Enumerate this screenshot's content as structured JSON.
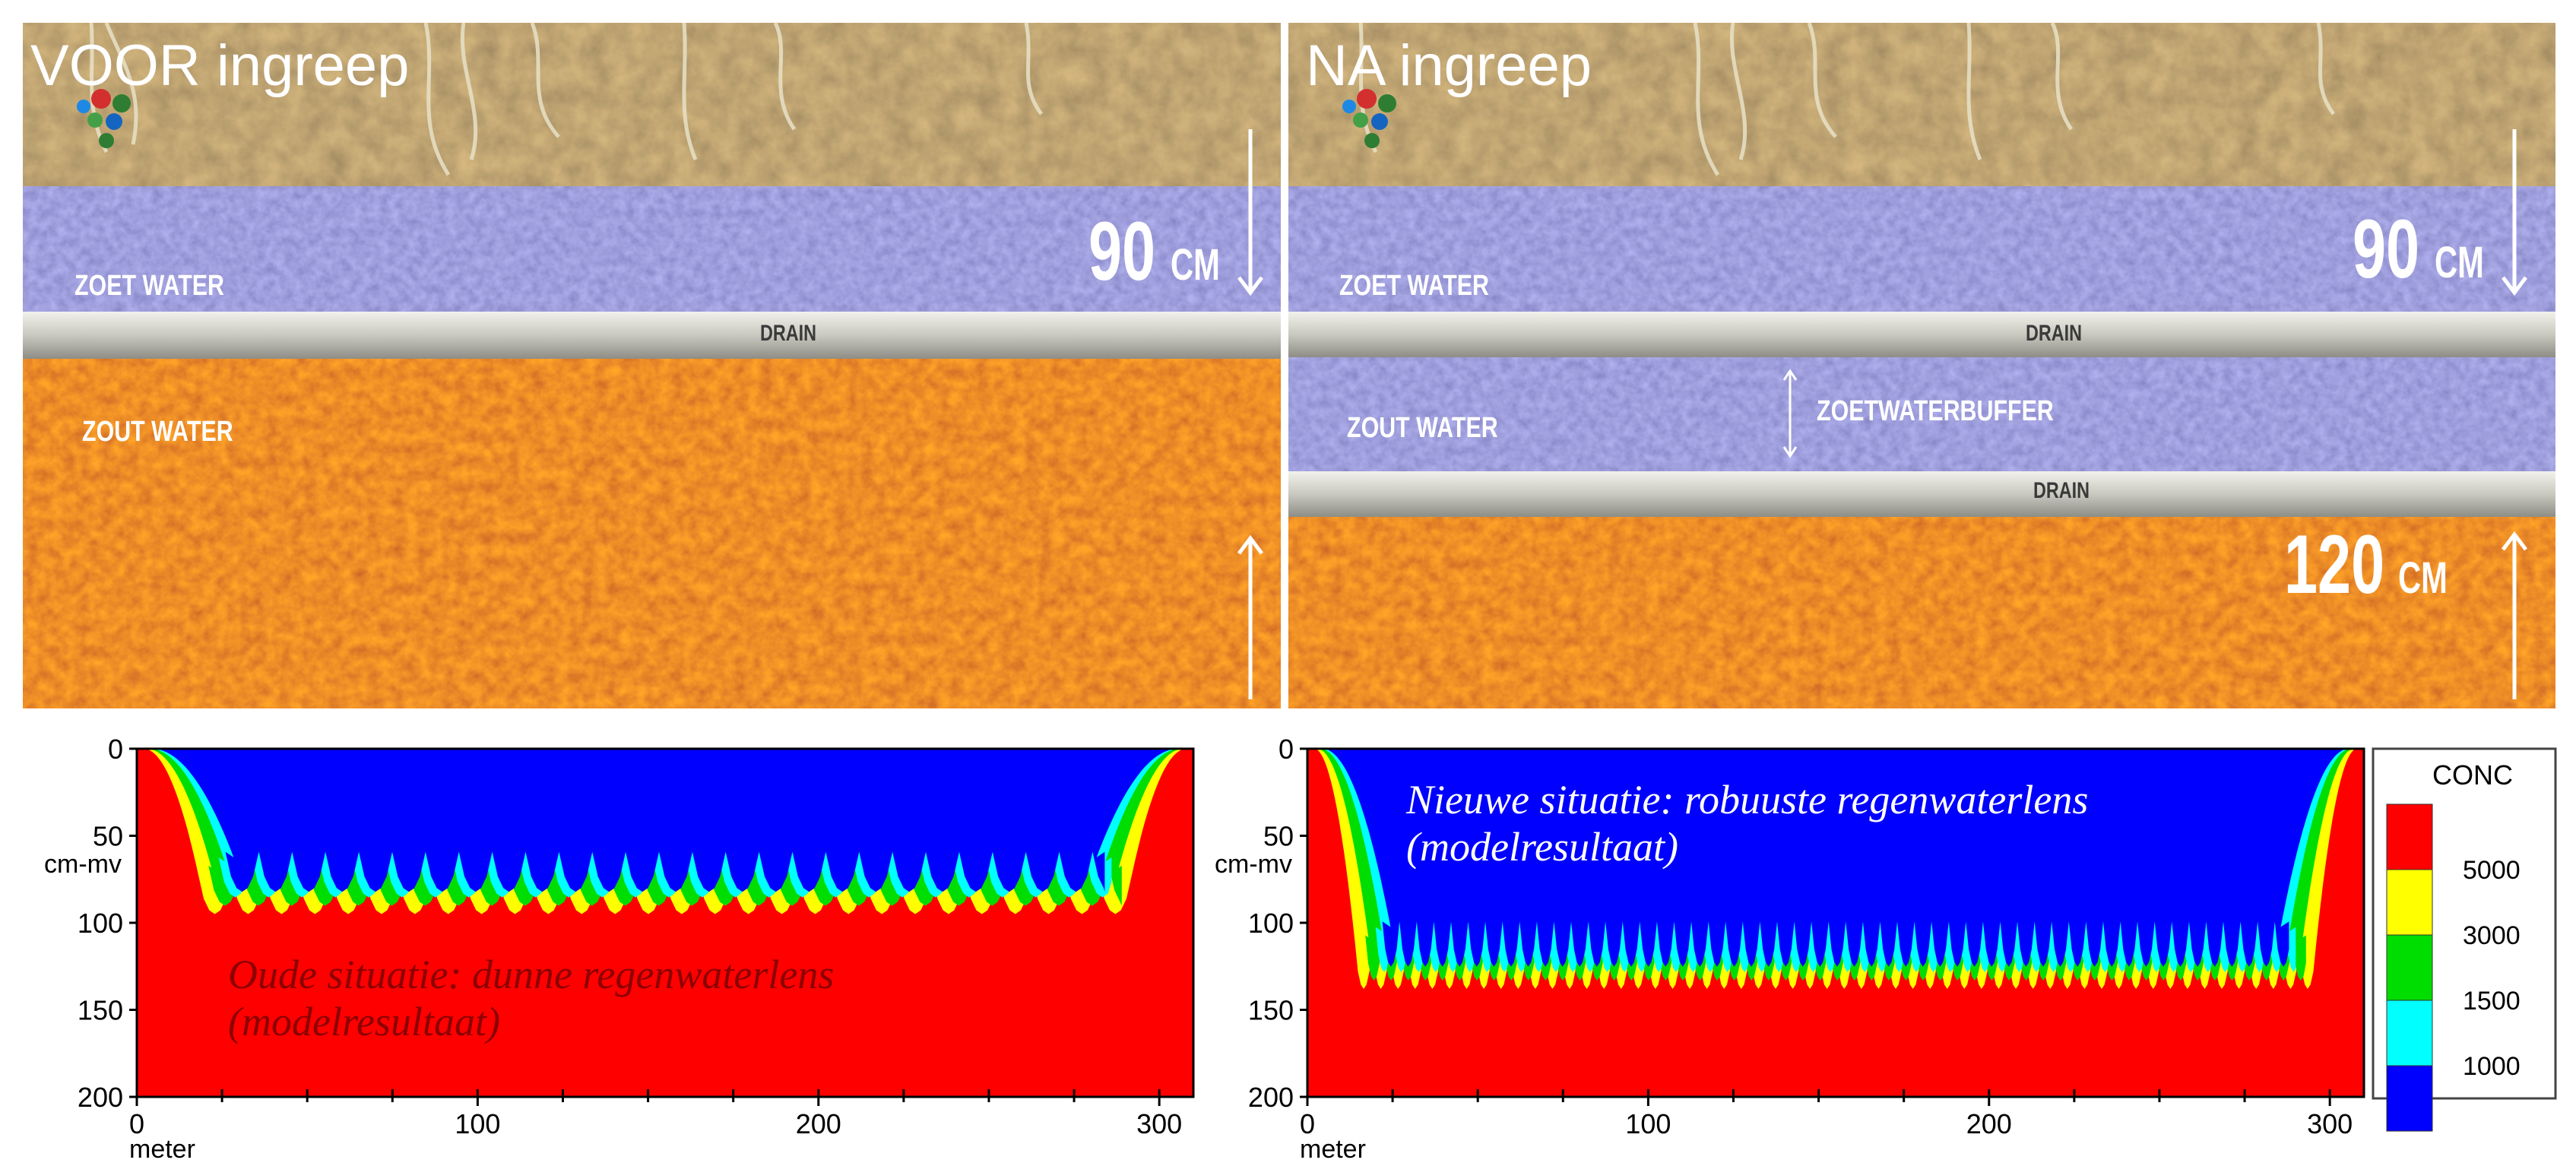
{
  "photos": {
    "left": {
      "title": "VOOR ingreep",
      "labels": {
        "fresh": "ZOET WATER",
        "salt": "ZOUT WATER",
        "drain": "DRAIN"
      },
      "depth_top": {
        "value": "90",
        "unit": "CM"
      }
    },
    "right": {
      "title": "NA ingreep",
      "labels": {
        "fresh": "ZOET WATER",
        "salt": "ZOUT WATER",
        "drain_upper": "DRAIN",
        "drain_lower": "DRAIN",
        "buffer": "ZOETWATERBUFFER"
      },
      "depth_top": {
        "value": "90",
        "unit": "CM"
      },
      "depth_bottom": {
        "value": "120",
        "unit": "CM"
      }
    }
  },
  "legend": {
    "title": "CONC",
    "items": [
      {
        "color": "#ff0000",
        "label": "5000"
      },
      {
        "color": "#ffff00",
        "label": "3000"
      },
      {
        "color": "#00dd00",
        "label": "1500"
      },
      {
        "color": "#00ffff",
        "label": "1000"
      },
      {
        "color": "#0000ff",
        "label": ""
      }
    ]
  },
  "chart_data": [
    {
      "type": "heatmap",
      "annotation": [
        "Oude situatie: dunne regenwaterlens",
        "(modelresultaat)"
      ],
      "xlabel": "meter",
      "ylabel": "cm-mv",
      "xlim": [
        0,
        310
      ],
      "ylim": [
        0,
        200
      ],
      "y_inverted": true,
      "xticks": [
        0,
        100,
        200,
        300
      ],
      "yticks": [
        0,
        50,
        100,
        150,
        200
      ],
      "drain_count": 28,
      "lens_base_cm": {
        "crest": 72,
        "trough": 95
      },
      "edge_x_m": [
        18,
        292
      ],
      "colors": {
        "5000": "#ff0000",
        "3000": "#ffff00",
        "1500": "#00dd00",
        "1000": "#00ffff",
        "fresh": "#0000ff"
      }
    },
    {
      "type": "heatmap",
      "annotation": [
        "Nieuwe situatie: robuuste regenwaterlens",
        "(modelresultaat)"
      ],
      "xlabel": "meter",
      "ylabel": "cm-mv",
      "xlim": [
        0,
        310
      ],
      "ylim": [
        0,
        200
      ],
      "y_inverted": true,
      "xticks": [
        0,
        100,
        200,
        300
      ],
      "yticks": [
        0,
        50,
        100,
        150,
        200
      ],
      "drain_count": 56,
      "lens_base_cm": {
        "crest": 112,
        "trough": 138
      },
      "edge_x_m": [
        14,
        296
      ],
      "colors": {
        "5000": "#ff0000",
        "3000": "#ffff00",
        "1500": "#00dd00",
        "1000": "#00ffff",
        "fresh": "#0000ff"
      }
    }
  ]
}
